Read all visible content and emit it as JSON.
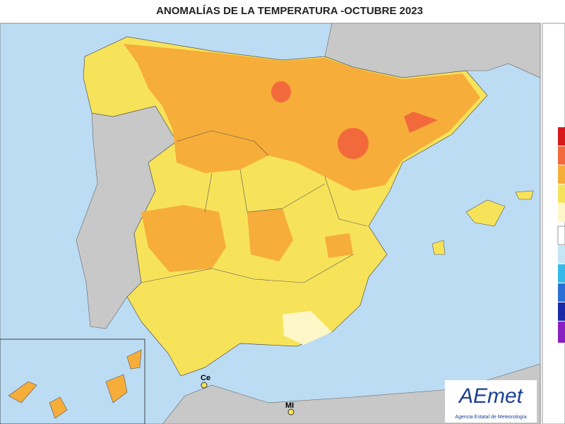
{
  "header": {
    "title": "ANOMALÍAS DE LA TEMPERATURA -OCTUBRE 2023"
  },
  "map": {
    "labels": [
      "Ce",
      "MI"
    ]
  },
  "logo": {
    "name": "AEmet",
    "subtitle": "Agencia Estatal de Meteorología"
  }
}
